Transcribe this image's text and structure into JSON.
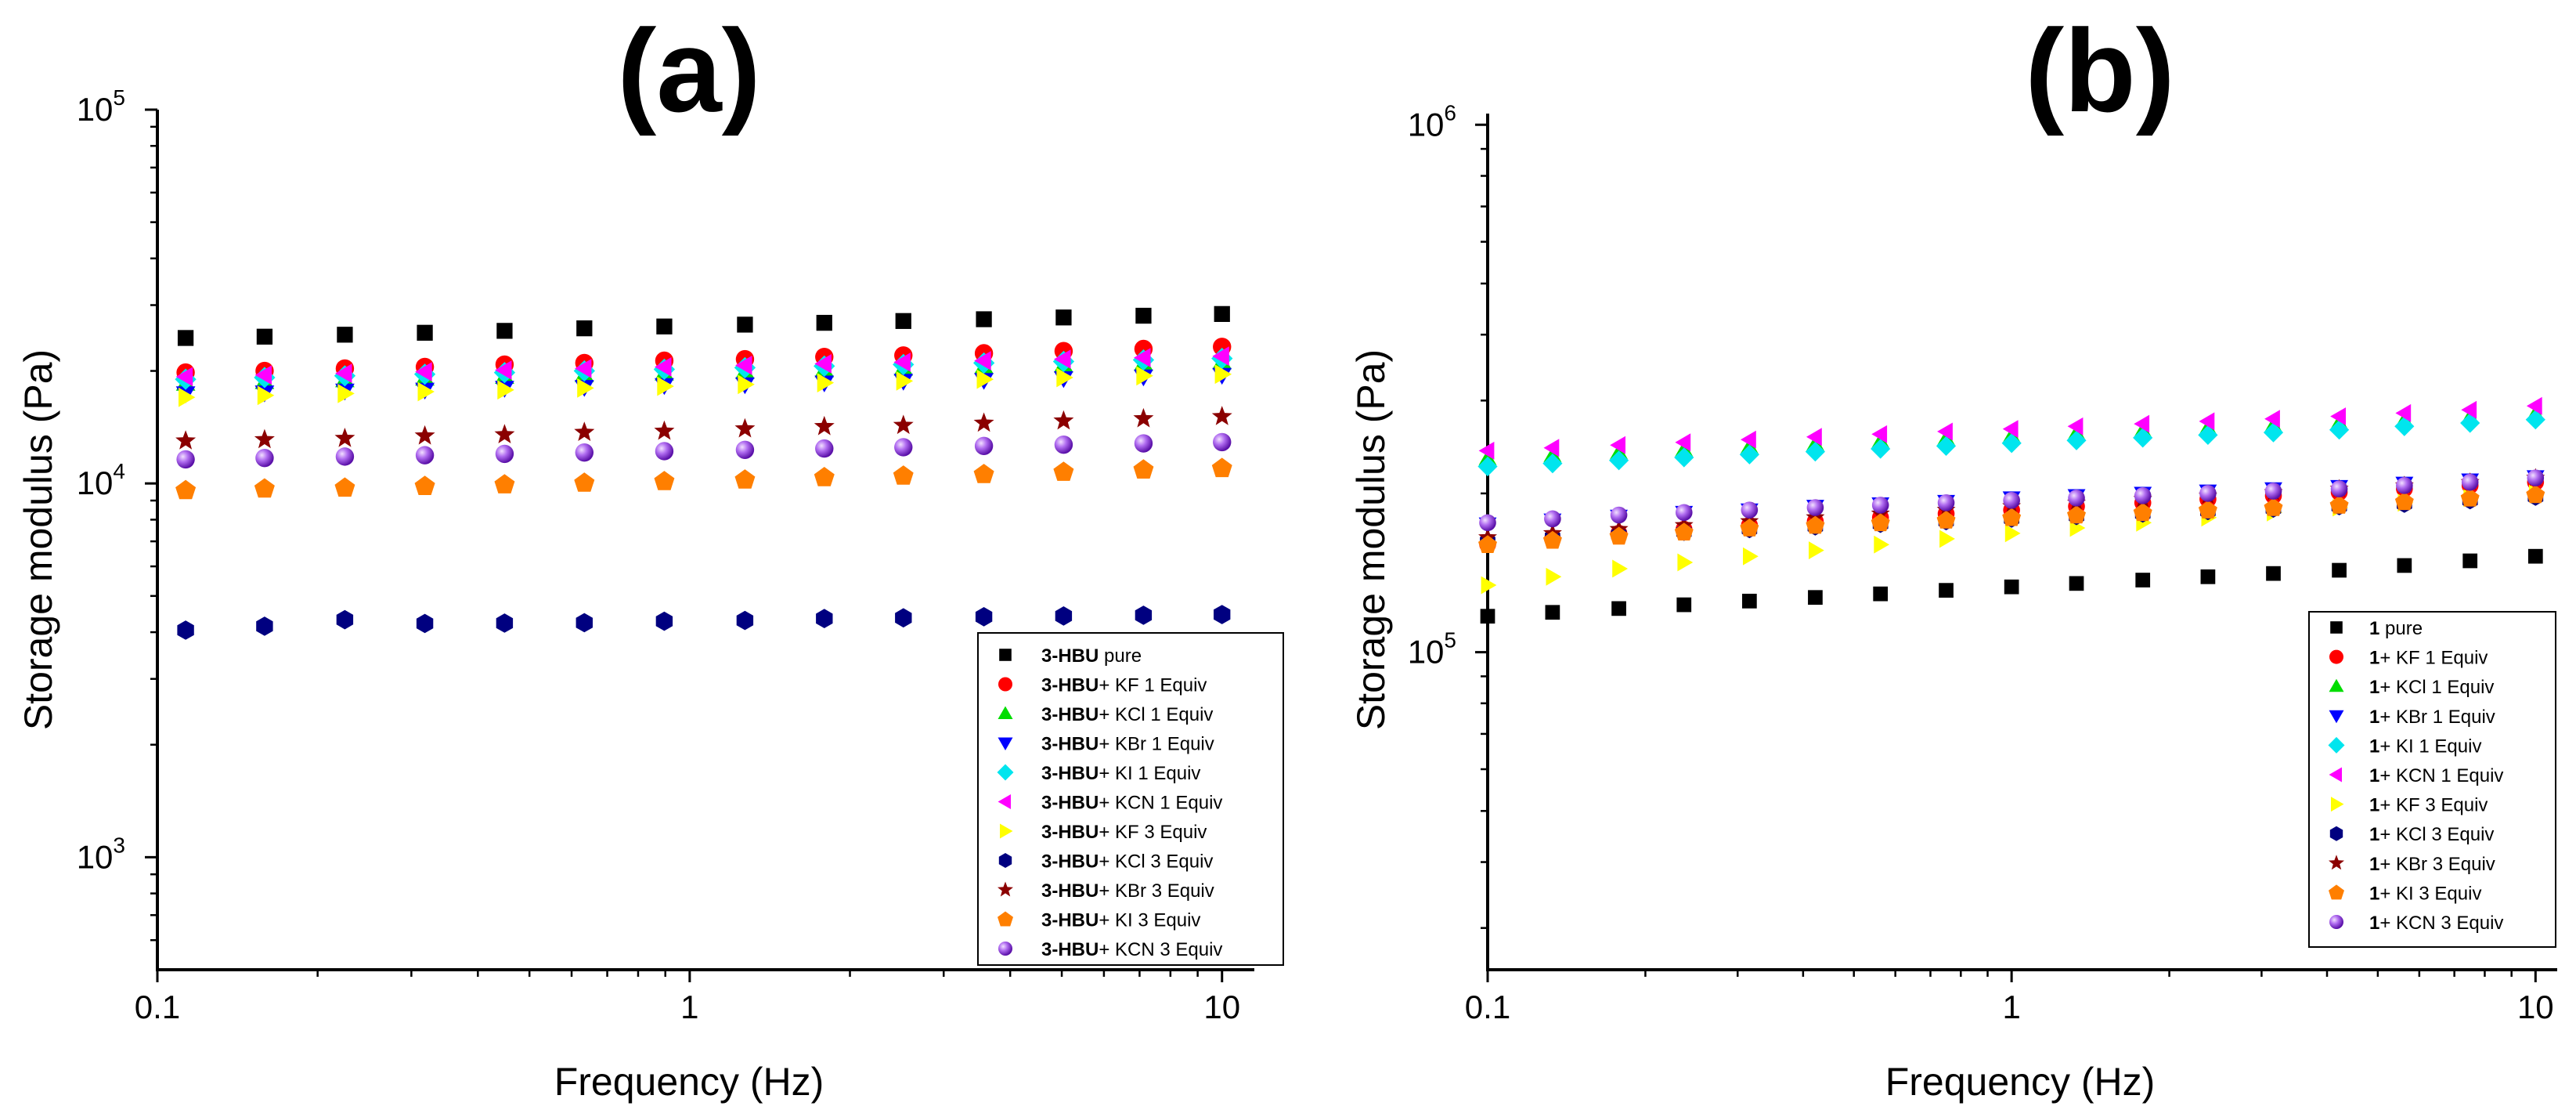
{
  "chart_data": [
    {
      "type": "scatter",
      "panel_label": "(a)",
      "xlabel": "Frequency (Hz)",
      "ylabel": "Storage modulus (Pa)",
      "xscale": "log",
      "yscale": "log",
      "xlim": [
        0.1,
        11.5
      ],
      "ylim": [
        500,
        100000
      ],
      "xticks": [
        {
          "label": "0.1"
        },
        {
          "label": "1"
        },
        {
          "label": "10"
        }
      ],
      "yticks": [
        {
          "base": "10",
          "exp": "3"
        },
        {
          "base": "10",
          "exp": "4"
        },
        {
          "base": "10",
          "exp": "5"
        }
      ],
      "legend_position": "bottom-right",
      "x": [
        0.113,
        0.159,
        0.225,
        0.318,
        0.449,
        0.634,
        0.896,
        1.27,
        1.79,
        2.52,
        3.57,
        5.04,
        7.12,
        10.0
      ],
      "series": [
        {
          "name_prefix": "3-HBU",
          "name_suffix": " pure",
          "marker": "square",
          "color": "#000000",
          "values": [
            24500,
            24700,
            25000,
            25300,
            25600,
            26000,
            26300,
            26600,
            26900,
            27200,
            27500,
            27800,
            28100,
            28400
          ]
        },
        {
          "name_prefix": "3-HBU",
          "name_suffix": "+ KF 1 Equiv",
          "marker": "circle",
          "color": "#ff0000",
          "values": [
            19800,
            20000,
            20300,
            20500,
            20800,
            21000,
            21300,
            21500,
            21800,
            22000,
            22300,
            22600,
            22900,
            23200
          ]
        },
        {
          "name_prefix": "3-HBU",
          "name_suffix": "+ KCl 1 Equiv",
          "marker": "triangle-up",
          "color": "#00dd00",
          "values": [
            18500,
            18700,
            18900,
            19100,
            19300,
            19500,
            19700,
            19900,
            20100,
            20300,
            20500,
            20700,
            20900,
            21100
          ]
        },
        {
          "name_prefix": "3-HBU",
          "name_suffix": "+ KBr 1 Equiv",
          "marker": "triangle-down",
          "color": "#0000ff",
          "values": [
            17400,
            17500,
            17700,
            17800,
            18000,
            18100,
            18300,
            18400,
            18600,
            18800,
            18900,
            19100,
            19300,
            19500
          ]
        },
        {
          "name_prefix": "3-HBU",
          "name_suffix": "+ KI 1 Equiv",
          "marker": "diamond",
          "color": "#00e5ee",
          "values": [
            19000,
            19200,
            19400,
            19600,
            19800,
            20000,
            20200,
            20400,
            20600,
            20800,
            21000,
            21200,
            21400,
            21600
          ]
        },
        {
          "name_prefix": "3-HBU",
          "name_suffix": "+ KCN 1 Equiv",
          "marker": "triangle-left",
          "color": "#ff00ff",
          "values": [
            19300,
            19500,
            19700,
            19900,
            20100,
            20300,
            20500,
            20700,
            20900,
            21100,
            21300,
            21500,
            21700,
            21900
          ]
        },
        {
          "name_prefix": "3-HBU",
          "name_suffix": "+ KF 3 Equiv",
          "marker": "triangle-right",
          "color": "#ffff00",
          "values": [
            17000,
            17200,
            17400,
            17600,
            17800,
            18000,
            18200,
            18400,
            18600,
            18800,
            19000,
            19200,
            19400,
            19600
          ]
        },
        {
          "name_prefix": "3-HBU",
          "name_suffix": "+ KCl 3 Equiv",
          "marker": "hexagon",
          "color": "#000080",
          "values": [
            4050,
            4150,
            4320,
            4220,
            4230,
            4240,
            4280,
            4300,
            4350,
            4370,
            4400,
            4420,
            4440,
            4460
          ]
        },
        {
          "name_prefix": "3-HBU",
          "name_suffix": "+ KBr 3 Equiv",
          "marker": "star",
          "color": "#8b0000",
          "values": [
            13000,
            13100,
            13200,
            13400,
            13500,
            13700,
            13800,
            14000,
            14200,
            14300,
            14500,
            14700,
            14900,
            15100
          ]
        },
        {
          "name_prefix": "3-HBU",
          "name_suffix": "+ KI 3 Equiv",
          "marker": "pentagon",
          "color": "#ff7f00",
          "values": [
            9600,
            9700,
            9750,
            9850,
            9950,
            10050,
            10150,
            10250,
            10400,
            10500,
            10600,
            10750,
            10900,
            11000
          ]
        },
        {
          "name_prefix": "3-HBU",
          "name_suffix": "+ KCN 3 Equiv",
          "marker": "sphere",
          "color": "#8a2be2",
          "values": [
            11600,
            11700,
            11800,
            11900,
            12000,
            12100,
            12200,
            12300,
            12400,
            12500,
            12600,
            12700,
            12800,
            12900
          ]
        }
      ]
    },
    {
      "type": "scatter",
      "panel_label": "(b)",
      "xlabel": "Frequency (Hz)",
      "ylabel": "Storage modulus (Pa)",
      "xscale": "log",
      "yscale": "log",
      "xlim": [
        0.1,
        11
      ],
      "ylim": [
        25000,
        1050000
      ],
      "xticks": [
        {
          "label": "0.1"
        },
        {
          "label": "1"
        },
        {
          "label": "10"
        }
      ],
      "yticks": [
        {
          "base": "10",
          "exp": "5"
        },
        {
          "base": "10",
          "exp": "6"
        }
      ],
      "legend_position": "bottom-right",
      "x": [
        0.1,
        0.133,
        0.178,
        0.237,
        0.316,
        0.422,
        0.562,
        0.75,
        1.0,
        1.33,
        1.78,
        2.37,
        3.16,
        4.22,
        5.62,
        7.5,
        10.0
      ],
      "series": [
        {
          "name_prefix": "1",
          "name_suffix": " pure",
          "marker": "square",
          "color": "#000000",
          "values": [
            117000,
            119000,
            121000,
            123000,
            125000,
            127000,
            129000,
            131000,
            133000,
            135000,
            137000,
            139000,
            141000,
            143000,
            146000,
            149000,
            152000
          ]
        },
        {
          "name_prefix": "1",
          "name_suffix": "+ KF 1 Equiv",
          "marker": "circle",
          "color": "#ff0000",
          "values": [
            160000,
            164000,
            168000,
            171000,
            174000,
            177000,
            180000,
            183000,
            186000,
            189000,
            192000,
            195000,
            198000,
            201000,
            204000,
            207000,
            210000
          ]
        },
        {
          "name_prefix": "1",
          "name_suffix": "+ KCl 1 Equiv",
          "marker": "triangle-up",
          "color": "#00dd00",
          "values": [
            233000,
            236000,
            239000,
            242000,
            245000,
            248000,
            251000,
            254000,
            257000,
            260000,
            263000,
            266000,
            269000,
            272000,
            275000,
            279000,
            283000
          ]
        },
        {
          "name_prefix": "1",
          "name_suffix": "+ KBr 1 Equiv",
          "marker": "triangle-down",
          "color": "#0000ff",
          "values": [
            175000,
            178000,
            181000,
            184000,
            186000,
            189000,
            191000,
            193000,
            196000,
            198000,
            200000,
            202000,
            204000,
            206000,
            209000,
            212000,
            215000
          ]
        },
        {
          "name_prefix": "1",
          "name_suffix": "+ KI 1 Equiv",
          "marker": "diamond",
          "color": "#00e5ee",
          "values": [
            225000,
            228000,
            231000,
            234000,
            237000,
            240000,
            243000,
            246000,
            249000,
            252000,
            255000,
            258000,
            261000,
            264000,
            268000,
            272000,
            276000
          ]
        },
        {
          "name_prefix": "1",
          "name_suffix": "+ KCN 1 Equiv",
          "marker": "triangle-left",
          "color": "#ff00ff",
          "values": [
            241000,
            244000,
            247000,
            250000,
            253000,
            256000,
            259000,
            262000,
            265000,
            268000,
            271000,
            274000,
            277000,
            280000,
            284000,
            288000,
            293000
          ]
        },
        {
          "name_prefix": "1",
          "name_suffix": "+ KF 3 Equiv",
          "marker": "triangle-right",
          "color": "#ffff00",
          "values": [
            134000,
            139000,
            144000,
            148000,
            152000,
            156000,
            160000,
            164000,
            168000,
            172000,
            176000,
            180000,
            184000,
            188000,
            192000,
            196000,
            200000
          ]
        },
        {
          "name_prefix": "1",
          "name_suffix": "+ KCl 3 Equiv",
          "marker": "hexagon",
          "color": "#000080",
          "values": [
            162000,
            165000,
            167000,
            169000,
            171000,
            173000,
            175000,
            177000,
            179000,
            181000,
            183000,
            185000,
            187000,
            189000,
            191000,
            194000,
            197000
          ]
        },
        {
          "name_prefix": "1",
          "name_suffix": "+ KBr 3 Equiv",
          "marker": "star",
          "color": "#8b0000",
          "values": [
            165000,
            168000,
            171000,
            174000,
            177000,
            180000,
            183000,
            186000,
            189000,
            192000,
            195000,
            198000,
            201000,
            204000,
            207000,
            210000,
            214000
          ]
        },
        {
          "name_prefix": "1",
          "name_suffix": "+ KI 3 Equiv",
          "marker": "pentagon",
          "color": "#ff7f00",
          "values": [
            160000,
            163000,
            166000,
            169000,
            172000,
            174000,
            176000,
            178000,
            180000,
            182000,
            184000,
            186000,
            188000,
            190000,
            193000,
            196000,
            199000
          ]
        },
        {
          "name_prefix": "1",
          "name_suffix": "+ KCN 3 Equiv",
          "marker": "sphere",
          "color": "#8a2be2",
          "values": [
            176000,
            179000,
            182000,
            184000,
            186000,
            188000,
            190000,
            192000,
            194000,
            196000,
            198000,
            200000,
            202000,
            204000,
            207000,
            210000,
            214000
          ]
        }
      ]
    }
  ]
}
